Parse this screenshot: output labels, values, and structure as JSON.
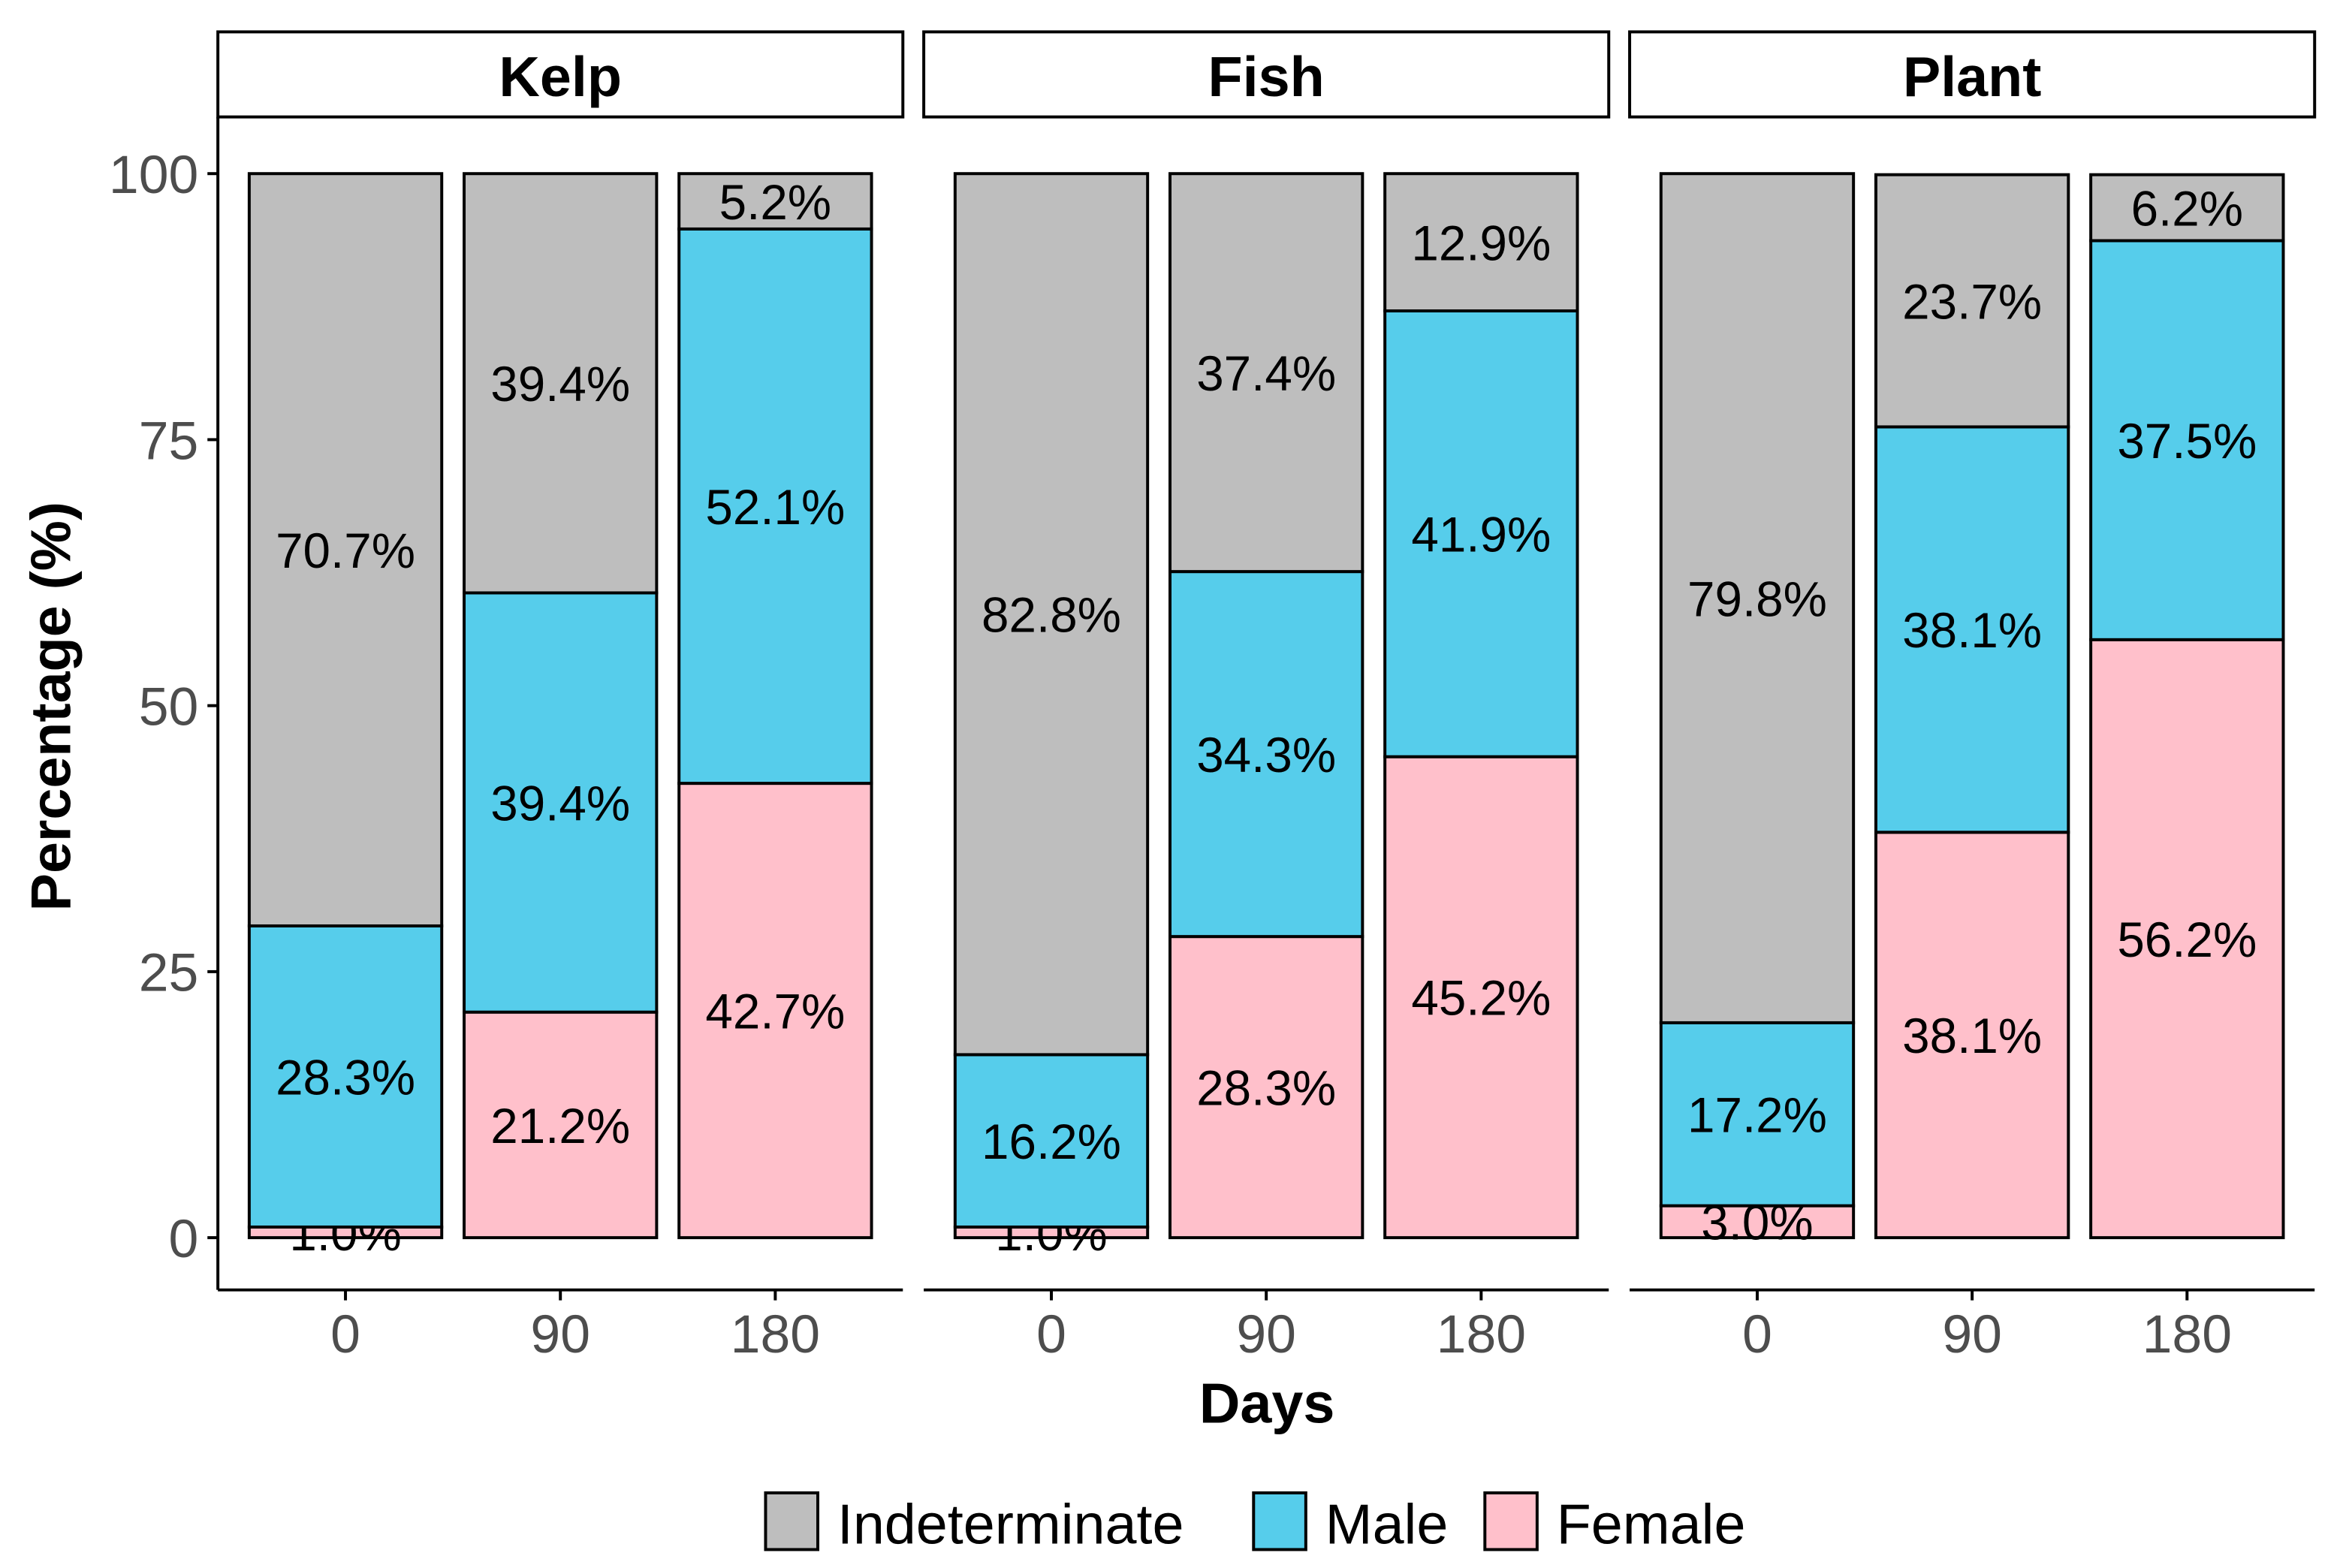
{
  "chart_data": {
    "type": "bar",
    "stacked": true,
    "facets": [
      "Kelp",
      "Fish",
      "Plant"
    ],
    "categories": [
      "0",
      "90",
      "180"
    ],
    "xlabel": "Days",
    "ylabel": "Percentage (%)",
    "ylim": [
      0,
      100
    ],
    "yticks": [
      "0",
      "25",
      "50",
      "75",
      "100"
    ],
    "ytick_values": [
      0,
      25,
      50,
      75,
      100
    ],
    "legend_position": "bottom",
    "series": [
      {
        "name": "Female",
        "color": "#FFC0CB",
        "values": {
          "Kelp": [
            1.0,
            21.2,
            42.7
          ],
          "Fish": [
            1.0,
            28.3,
            45.2
          ],
          "Plant": [
            3.0,
            38.1,
            56.2
          ]
        },
        "labels": {
          "Kelp": [
            "1.0%",
            "21.2%",
            "42.7%"
          ],
          "Fish": [
            "1.0%",
            "28.3%",
            "45.2%"
          ],
          "Plant": [
            "3.0%",
            "38.1%",
            "56.2%"
          ]
        }
      },
      {
        "name": "Male",
        "color": "#56CDEB",
        "values": {
          "Kelp": [
            28.3,
            39.4,
            52.1
          ],
          "Fish": [
            16.2,
            34.3,
            41.9
          ],
          "Plant": [
            17.2,
            38.1,
            37.5
          ]
        },
        "labels": {
          "Kelp": [
            "28.3%",
            "39.4%",
            "52.1%"
          ],
          "Fish": [
            "16.2%",
            "34.3%",
            "41.9%"
          ],
          "Plant": [
            "17.2%",
            "38.1%",
            "37.5%"
          ]
        }
      },
      {
        "name": "Indeterminate",
        "color": "#BEBEBE",
        "values": {
          "Kelp": [
            70.7,
            39.4,
            5.2
          ],
          "Fish": [
            82.8,
            37.4,
            12.9
          ],
          "Plant": [
            79.8,
            23.7,
            6.2
          ]
        },
        "labels": {
          "Kelp": [
            "70.7%",
            "39.4%",
            "5.2%"
          ],
          "Fish": [
            "82.8%",
            "37.4%",
            "12.9%"
          ],
          "Plant": [
            "79.8%",
            "23.7%",
            "6.2%"
          ]
        }
      }
    ],
    "legend_order": [
      "Indeterminate",
      "Male",
      "Female"
    ]
  }
}
